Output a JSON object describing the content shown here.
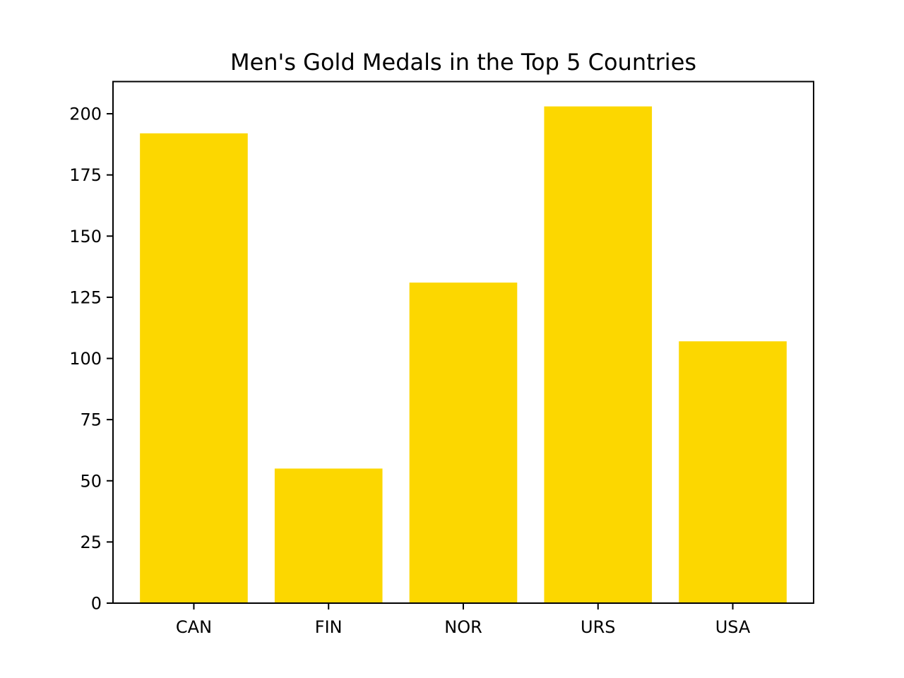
{
  "chart_data": {
    "type": "bar",
    "title": "Men's Gold Medals in the Top 5 Countries",
    "xlabel": "",
    "ylabel": "",
    "categories": [
      "CAN",
      "FIN",
      "NOR",
      "URS",
      "USA"
    ],
    "values": [
      192,
      55,
      131,
      203,
      107
    ],
    "ylim": [
      0,
      213.15
    ],
    "yticks": [
      0,
      25,
      50,
      75,
      100,
      125,
      150,
      175,
      200
    ],
    "bar_color": "#FCD700",
    "grid": false,
    "legend": "none"
  }
}
